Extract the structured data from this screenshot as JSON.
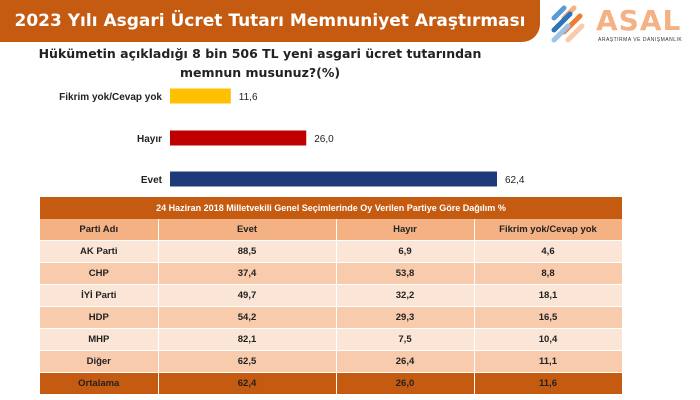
{
  "header": {
    "title": "2023 Yılı Asgari Ücret Tutarı Memnuniyet Araştırması"
  },
  "logo": {
    "name": "ASAL",
    "tagline": "ARAŞTIRMA VE DANIŞMANLIK"
  },
  "question": {
    "line1": "Hükümetin açıkladığı 8 bin 506 TL yeni asgari ücret tutarından",
    "line2": "memnun musunuz?(%)"
  },
  "chart_data": [
    {
      "type": "bar",
      "orientation": "horizontal",
      "title": "Hükümetin açıkladığı 8 bin 506 TL yeni asgari ücret tutarından memnun musunuz?(%)",
      "categories": [
        "Fikrim yok/Cevap yok",
        "Hayır",
        "Evet"
      ],
      "values": [
        11.6,
        26.0,
        62.4
      ],
      "value_labels": [
        "11,6",
        "26,0",
        "62,4"
      ],
      "colors": [
        "#ffc000",
        "#c00000",
        "#1f3a7a"
      ],
      "xlim": [
        0,
        62.4
      ],
      "grid": false,
      "legend": "none"
    },
    {
      "type": "table",
      "title": "24 Haziran 2018 Milletvekili Genel Seçimlerinde Oy Verilen Partiye Göre Dağılım %",
      "columns": [
        "Parti Adı",
        "Evet",
        "Hayır",
        "Fikrim yok/Cevap yok"
      ],
      "rows": [
        [
          "AK Parti",
          "88,5",
          "6,9",
          "4,6"
        ],
        [
          "CHP",
          "37,4",
          "53,8",
          "8,8"
        ],
        [
          "İYİ Parti",
          "49,7",
          "32,2",
          "18,1"
        ],
        [
          "HDP",
          "54,2",
          "29,3",
          "16,5"
        ],
        [
          "MHP",
          "82,1",
          "7,5",
          "10,4"
        ],
        [
          "Diğer",
          "62,5",
          "26,4",
          "11,1"
        ]
      ],
      "footer": [
        "Ortalama",
        "62,4",
        "26,0",
        "11,6"
      ]
    }
  ],
  "colors": {
    "brand_orange": "#c55a11",
    "header_orange": "#f4b183",
    "row_light": "#fbe5d6",
    "row_dark": "#f8cbad"
  }
}
